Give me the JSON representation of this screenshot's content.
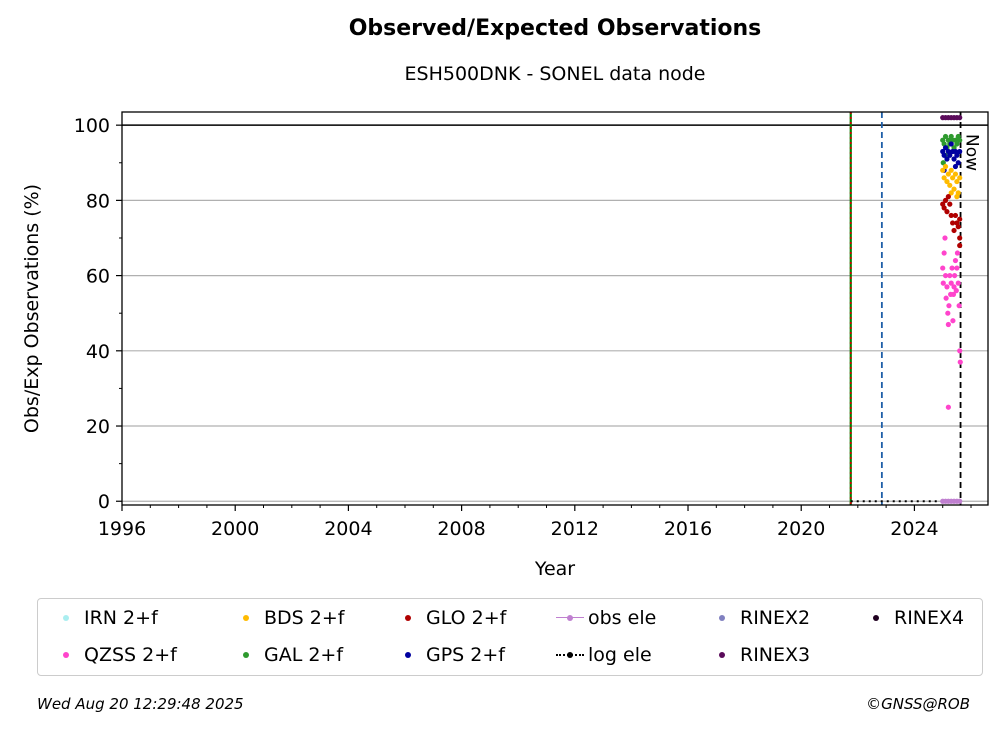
{
  "chart_data": {
    "type": "scatter",
    "title": "Observed/Expected Observations",
    "subtitle": "ESH500DNK - SONEL data node",
    "xlabel": "Year",
    "ylabel": "Obs/Exp Observations (%)",
    "xlim": [
      1996,
      2026.6
    ],
    "ylim": [
      -1,
      103.5
    ],
    "xticks": [
      1996,
      2000,
      2004,
      2008,
      2012,
      2016,
      2020,
      2024
    ],
    "yticks": [
      0,
      20,
      40,
      60,
      80,
      100
    ],
    "grid": "y-major",
    "reference_line_y": 100,
    "vertical_lines": [
      {
        "x": 2021.75,
        "color": "#008000",
        "style": "solid"
      },
      {
        "x": 2021.75,
        "color": "#cc0000",
        "style": "dotted"
      },
      {
        "x": 2022.85,
        "color": "#1f5fa8",
        "style": "dashed"
      },
      {
        "x": 2025.63,
        "color": "#000000",
        "style": "dashed"
      }
    ],
    "now_label": "Now",
    "log_ele": {
      "x": [
        2021.75,
        2025.63
      ],
      "y": [
        0,
        0
      ]
    },
    "series": [
      {
        "name": "RINEX3",
        "color": "#5a0a5a",
        "points": [
          [
            2025.0,
            102
          ],
          [
            2025.1,
            102
          ],
          [
            2025.2,
            102
          ],
          [
            2025.3,
            102
          ],
          [
            2025.4,
            102
          ],
          [
            2025.5,
            102
          ],
          [
            2025.6,
            102
          ]
        ]
      },
      {
        "name": "GAL 2+f",
        "color": "#2e9a2e",
        "points": [
          [
            2025.0,
            96
          ],
          [
            2025.05,
            95
          ],
          [
            2025.1,
            97
          ],
          [
            2025.15,
            94
          ],
          [
            2025.2,
            96
          ],
          [
            2025.25,
            95
          ],
          [
            2025.3,
            97
          ],
          [
            2025.35,
            96
          ],
          [
            2025.4,
            94
          ],
          [
            2025.45,
            96
          ],
          [
            2025.5,
            95
          ],
          [
            2025.55,
            97
          ],
          [
            2025.6,
            96
          ],
          [
            2025.02,
            90
          ],
          [
            2025.08,
            92
          ]
        ]
      },
      {
        "name": "GPS 2+f",
        "color": "#0000a0",
        "points": [
          [
            2025.0,
            93
          ],
          [
            2025.05,
            92
          ],
          [
            2025.1,
            94
          ],
          [
            2025.15,
            91
          ],
          [
            2025.2,
            93
          ],
          [
            2025.25,
            92
          ],
          [
            2025.3,
            95
          ],
          [
            2025.35,
            93
          ],
          [
            2025.4,
            91
          ],
          [
            2025.45,
            93
          ],
          [
            2025.5,
            92
          ],
          [
            2025.55,
            90
          ],
          [
            2025.6,
            93
          ],
          [
            2025.05,
            88
          ],
          [
            2025.45,
            89
          ]
        ]
      },
      {
        "name": "BDS 2+f",
        "color": "#ffbb00",
        "points": [
          [
            2025.0,
            88
          ],
          [
            2025.05,
            86
          ],
          [
            2025.1,
            89
          ],
          [
            2025.15,
            85
          ],
          [
            2025.2,
            87
          ],
          [
            2025.25,
            84
          ],
          [
            2025.3,
            88
          ],
          [
            2025.35,
            86
          ],
          [
            2025.4,
            83
          ],
          [
            2025.45,
            87
          ],
          [
            2025.5,
            85
          ],
          [
            2025.55,
            82
          ],
          [
            2025.6,
            86
          ],
          [
            2025.3,
            82
          ],
          [
            2025.5,
            81
          ]
        ]
      },
      {
        "name": "GLO 2+f",
        "color": "#b00000",
        "points": [
          [
            2025.0,
            79
          ],
          [
            2025.05,
            78
          ],
          [
            2025.1,
            80
          ],
          [
            2025.15,
            77
          ],
          [
            2025.2,
            81
          ],
          [
            2025.25,
            79
          ],
          [
            2025.3,
            76
          ],
          [
            2025.35,
            74
          ],
          [
            2025.4,
            72
          ],
          [
            2025.45,
            76
          ],
          [
            2025.5,
            74
          ],
          [
            2025.55,
            73
          ],
          [
            2025.6,
            75
          ],
          [
            2025.6,
            70
          ],
          [
            2025.6,
            68
          ]
        ]
      },
      {
        "name": "QZSS 2+f",
        "color": "#ff44cc",
        "points": [
          [
            2025.0,
            62
          ],
          [
            2025.02,
            58
          ],
          [
            2025.05,
            66
          ],
          [
            2025.08,
            70
          ],
          [
            2025.1,
            60
          ],
          [
            2025.12,
            54
          ],
          [
            2025.15,
            57
          ],
          [
            2025.18,
            50
          ],
          [
            2025.2,
            47
          ],
          [
            2025.22,
            52
          ],
          [
            2025.25,
            60
          ],
          [
            2025.28,
            55
          ],
          [
            2025.3,
            58
          ],
          [
            2025.33,
            62
          ],
          [
            2025.36,
            48
          ],
          [
            2025.38,
            55
          ],
          [
            2025.4,
            57
          ],
          [
            2025.42,
            60
          ],
          [
            2025.45,
            64
          ],
          [
            2025.48,
            56
          ],
          [
            2025.5,
            62
          ],
          [
            2025.52,
            66
          ],
          [
            2025.55,
            58
          ],
          [
            2025.58,
            52
          ],
          [
            2025.6,
            40
          ],
          [
            2025.62,
            37
          ],
          [
            2025.2,
            25
          ]
        ]
      },
      {
        "name": "obs ele",
        "color": "#c080d0",
        "points": [
          [
            2025.0,
            0
          ],
          [
            2025.1,
            0
          ],
          [
            2025.2,
            0
          ],
          [
            2025.3,
            0
          ],
          [
            2025.4,
            0
          ],
          [
            2025.5,
            0
          ],
          [
            2025.6,
            0
          ]
        ]
      },
      {
        "name": "IRN 2+f",
        "color": "#aaeef0",
        "points": []
      },
      {
        "name": "RINEX2",
        "color": "#8080c0",
        "points": []
      },
      {
        "name": "RINEX4",
        "color": "#200020",
        "points": []
      },
      {
        "name": "log ele",
        "color": "#000000",
        "points": []
      }
    ],
    "legend": {
      "placement": "below",
      "items": [
        {
          "label": "IRN 2+f",
          "color": "#aaeef0",
          "kind": "dot"
        },
        {
          "label": "QZSS 2+f",
          "color": "#ff44cc",
          "kind": "dot"
        },
        {
          "label": "BDS 2+f",
          "color": "#ffbb00",
          "kind": "dot"
        },
        {
          "label": "GAL 2+f",
          "color": "#2e9a2e",
          "kind": "dot"
        },
        {
          "label": "GLO 2+f",
          "color": "#b00000",
          "kind": "dot"
        },
        {
          "label": "GPS 2+f",
          "color": "#0000a0",
          "kind": "dot"
        },
        {
          "label": "obs ele",
          "color": "#c080d0",
          "kind": "line-dot"
        },
        {
          "label": "log ele",
          "color": "#000000",
          "kind": "dotted-dot"
        },
        {
          "label": "RINEX2",
          "color": "#8080c0",
          "kind": "dot"
        },
        {
          "label": "RINEX3",
          "color": "#5a0a5a",
          "kind": "dot"
        },
        {
          "label": "RINEX4",
          "color": "#200020",
          "kind": "dot"
        }
      ]
    }
  },
  "footer": {
    "timestamp": "Wed Aug 20 12:29:48 2025",
    "credit": "©GNSS@ROB"
  }
}
